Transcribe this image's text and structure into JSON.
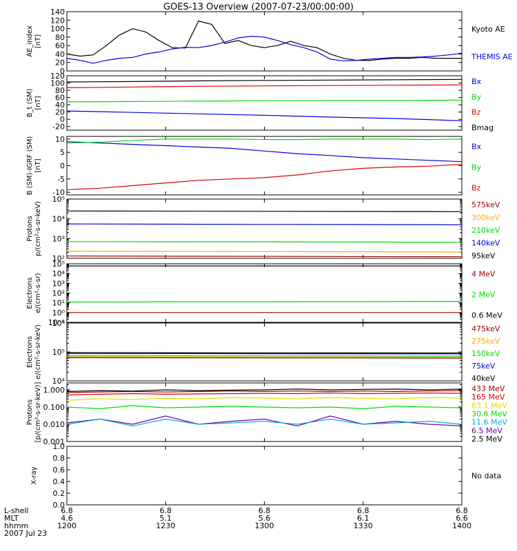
{
  "title": "GOES-13 Overview (2007-07-23/00:00:00)",
  "colors": {
    "black": "#000000",
    "blue": "#0000e0",
    "green": "#00dd00",
    "red": "#dd0000",
    "darkred": "#990000",
    "orange": "#ffaa00",
    "cyan": "#00aadd",
    "purple": "#6a00a8",
    "olive": "#dddd00"
  },
  "x_axis": {
    "row_labels": [
      "L-shell",
      "MLT",
      "hhmm",
      "2007 Jul 23"
    ],
    "ticks": [
      {
        "t": 1200,
        "lshell": "6.8",
        "mlt": "4.6",
        "hhmm": "1200"
      },
      {
        "t": 1230,
        "lshell": "6.8",
        "mlt": "5.1",
        "hhmm": "1230"
      },
      {
        "t": 1300,
        "lshell": "6.8",
        "mlt": "5.6",
        "hhmm": "1300"
      },
      {
        "t": 1330,
        "lshell": "6.8",
        "mlt": "6.1",
        "hhmm": "1330"
      },
      {
        "t": 1400,
        "lshell": "6.8",
        "mlt": "6.6",
        "hhmm": "1400"
      }
    ]
  },
  "chart_data": [
    {
      "type": "line",
      "ylabel": "AE_index\n[nT]",
      "ylim": [
        0,
        140
      ],
      "yticks": [
        "0",
        "20",
        "40",
        "60",
        "80",
        "100",
        "120",
        "140"
      ],
      "yvals": [
        0,
        20,
        40,
        60,
        80,
        100,
        120,
        140
      ],
      "legend": [
        {
          "label": "Kyoto AE",
          "color": "black"
        },
        {
          "label": "THEMIS AE",
          "color": "blue"
        }
      ],
      "series": [
        {
          "name": "Kyoto AE",
          "color": "black",
          "x": [
            0,
            4,
            8,
            12,
            16,
            20,
            24,
            28,
            32,
            36,
            40,
            44,
            48,
            52,
            56,
            60,
            64,
            68,
            72,
            76,
            80,
            84,
            88,
            92,
            96,
            100,
            104,
            108,
            112,
            116,
            120
          ],
          "y": [
            40,
            35,
            38,
            60,
            85,
            100,
            92,
            72,
            55,
            54,
            118,
            110,
            65,
            72,
            60,
            55,
            60,
            70,
            60,
            55,
            40,
            30,
            25,
            25,
            28,
            30,
            30,
            32,
            30,
            30,
            30
          ]
        },
        {
          "name": "THEMIS AE",
          "color": "blue",
          "x": [
            0,
            4,
            8,
            12,
            16,
            20,
            24,
            28,
            32,
            36,
            40,
            44,
            48,
            52,
            56,
            60,
            64,
            68,
            72,
            76,
            80,
            84,
            88,
            92,
            96,
            100,
            104,
            108,
            112,
            116,
            120
          ],
          "y": [
            30,
            25,
            18,
            25,
            30,
            32,
            40,
            45,
            52,
            56,
            55,
            60,
            68,
            78,
            82,
            80,
            72,
            62,
            55,
            45,
            28,
            24,
            25,
            28,
            30,
            32,
            32,
            33,
            35,
            38,
            42
          ]
        }
      ]
    },
    {
      "type": "line",
      "ylabel": "B_t (SM)\n[nT]",
      "ylim": [
        -30,
        120
      ],
      "yticks": [
        "-20",
        "0",
        "20",
        "40",
        "60",
        "80",
        "100",
        "120"
      ],
      "yvals": [
        -20,
        0,
        20,
        40,
        60,
        80,
        100,
        120
      ],
      "legend": [
        {
          "label": "Bx",
          "color": "blue"
        },
        {
          "label": "By",
          "color": "green"
        },
        {
          "label": "Bz",
          "color": "red"
        },
        {
          "label": "Bmag",
          "color": "black"
        }
      ],
      "series": [
        {
          "name": "Bx",
          "color": "blue",
          "x": [
            0,
            20,
            40,
            60,
            80,
            100,
            120
          ],
          "y": [
            23,
            19,
            15,
            11,
            6,
            2,
            -4
          ]
        },
        {
          "name": "By",
          "color": "green",
          "x": [
            0,
            20,
            40,
            60,
            80,
            100,
            120
          ],
          "y": [
            48,
            49,
            50,
            51,
            52,
            52,
            53
          ]
        },
        {
          "name": "Bz",
          "color": "red",
          "x": [
            0,
            20,
            40,
            60,
            80,
            100,
            120
          ],
          "y": [
            87,
            89,
            91,
            92,
            93,
            94,
            95
          ]
        },
        {
          "name": "Bmag",
          "color": "black",
          "x": [
            0,
            20,
            40,
            60,
            80,
            100,
            120
          ],
          "y": [
            103,
            104,
            106,
            107,
            108,
            109,
            110
          ]
        }
      ]
    },
    {
      "type": "line",
      "ylabel": "B (SM)-IGRF (SM)\n[nT]",
      "ylim": [
        -11,
        11
      ],
      "yticks": [
        "-10",
        "-5",
        "0",
        "5",
        "10"
      ],
      "yvals": [
        -10,
        -5,
        0,
        5,
        10
      ],
      "legend": [
        {
          "label": "Bx",
          "color": "blue"
        },
        {
          "label": "By",
          "color": "green"
        },
        {
          "label": "Bz",
          "color": "red"
        }
      ],
      "series": [
        {
          "name": "Bx",
          "color": "blue",
          "x": [
            0,
            10,
            20,
            30,
            40,
            50,
            60,
            70,
            80,
            90,
            100,
            110,
            120
          ],
          "y": [
            9,
            8.5,
            8,
            7.5,
            7,
            6.5,
            5.5,
            4.5,
            3.8,
            3,
            2.5,
            2,
            1.5
          ]
        },
        {
          "name": "By",
          "color": "green",
          "x": [
            0,
            10,
            20,
            30,
            40,
            50,
            60,
            70,
            80,
            90,
            100,
            110,
            120
          ],
          "y": [
            8.5,
            8.8,
            9.5,
            10,
            10,
            10,
            9.8,
            9.8,
            10,
            10,
            10,
            9.8,
            10
          ]
        },
        {
          "name": "Bz",
          "color": "red",
          "x": [
            0,
            10,
            20,
            30,
            40,
            50,
            60,
            70,
            80,
            90,
            100,
            110,
            120
          ],
          "y": [
            -9,
            -8.5,
            -7.5,
            -6.5,
            -5.5,
            -5,
            -4.5,
            -3.5,
            -2,
            -1,
            -0.5,
            -0.2,
            0.5
          ]
        }
      ]
    },
    {
      "type": "line",
      "log": true,
      "ylabel": "Protons\np/(cm²-s-sr-keV)",
      "ylim": [
        100,
        100000
      ],
      "yticks": [
        "10²",
        "10³",
        "10⁴",
        "10⁵"
      ],
      "yvals": [
        100,
        1000,
        10000,
        100000
      ],
      "legend": [
        {
          "label": "575keV",
          "color": "darkred"
        },
        {
          "label": "300keV",
          "color": "orange"
        },
        {
          "label": "210keV",
          "color": "green"
        },
        {
          "label": "140keV",
          "color": "blue"
        },
        {
          "label": "95keV",
          "color": "black"
        }
      ],
      "series": [
        {
          "name": "95keV",
          "color": "black",
          "x": [
            0,
            60,
            120
          ],
          "y": [
            25000,
            24000,
            23000
          ]
        },
        {
          "name": "140keV",
          "color": "blue",
          "x": [
            0,
            60,
            120
          ],
          "y": [
            5500,
            5200,
            5000
          ]
        },
        {
          "name": "210keV",
          "color": "green",
          "x": [
            0,
            60,
            120
          ],
          "y": [
            700,
            680,
            650
          ]
        },
        {
          "name": "300keV",
          "color": "orange",
          "x": [
            0,
            60,
            120
          ],
          "y": [
            230,
            220,
            210
          ]
        },
        {
          "name": "575keV",
          "color": "darkred",
          "x": [
            0,
            60,
            120
          ],
          "y": [
            130,
            125,
            120
          ]
        }
      ]
    },
    {
      "type": "line",
      "log": true,
      "ylabel": "Electrons\ne/(cm²-s-sr)",
      "ylim": [
        0.1,
        100000
      ],
      "yticks": [
        "10⁻¹",
        "10⁰",
        "10¹",
        "10²",
        "10³",
        "10⁴",
        "10⁵"
      ],
      "yvals": [
        0.1,
        1,
        10,
        100,
        1000,
        10000,
        100000
      ],
      "legend": [
        {
          "label": "4 MeV",
          "color": "darkred"
        },
        {
          "label": "2 MeV",
          "color": "green"
        },
        {
          "label": "0.6 MeV",
          "color": "black"
        }
      ],
      "series": [
        {
          "name": "0.6 MeV",
          "color": "black",
          "x": [
            0,
            60,
            120
          ],
          "y": [
            60000,
            60000,
            60000
          ]
        },
        {
          "name": "2 MeV",
          "color": "green",
          "x": [
            0,
            60,
            120
          ],
          "y": [
            12,
            13,
            14
          ]
        },
        {
          "name": "4 MeV",
          "color": "darkred",
          "x": [
            0,
            60,
            120
          ],
          "y": [
            1,
            1,
            1
          ]
        }
      ]
    },
    {
      "type": "line",
      "log": true,
      "ylabel": "Electrons\ne/(cm²-s-sr-keV)",
      "ylim": [
        10000,
        1000000
      ],
      "yticks": [
        "10⁴",
        "10⁵",
        "10⁶"
      ],
      "yvals": [
        10000,
        100000,
        1000000
      ],
      "legend": [
        {
          "label": "475keV",
          "color": "darkred"
        },
        {
          "label": "275keV",
          "color": "orange"
        },
        {
          "label": "150keV",
          "color": "green"
        },
        {
          "label": "75keV",
          "color": "blue"
        },
        {
          "label": "40keV",
          "color": "black"
        }
      ],
      "series": [
        {
          "name": "40keV",
          "color": "black",
          "x": [
            0,
            60,
            120
          ],
          "y": [
            95000,
            93000,
            92000
          ]
        },
        {
          "name": "75keV",
          "color": "blue",
          "x": [
            0,
            60,
            120
          ],
          "y": [
            88000,
            87000,
            86000
          ]
        },
        {
          "name": "150keV",
          "color": "green",
          "x": [
            0,
            60,
            120
          ],
          "y": [
            74000,
            73000,
            72000
          ]
        },
        {
          "name": "275keV",
          "color": "orange",
          "x": [
            0,
            60,
            120
          ],
          "y": [
            68000,
            67000,
            66000
          ]
        },
        {
          "name": "475keV",
          "color": "darkred",
          "x": [
            0,
            60,
            120
          ],
          "y": [
            63000,
            62000,
            61000
          ]
        }
      ]
    },
    {
      "type": "line",
      "log": true,
      "ylabel": "Protons\n[p/(cm²-s-sr-keV)]",
      "ylim": [
        0.001,
        2.5
      ],
      "yticks": [
        "0.001",
        "0.010",
        "0.100",
        "1.000"
      ],
      "yvals": [
        0.001,
        0.01,
        0.1,
        1
      ],
      "legend": [
        {
          "label": "433 MeV",
          "color": "darkred"
        },
        {
          "label": "165 MeV",
          "color": "red"
        },
        {
          "label": "63.1 MeV",
          "color": "olive"
        },
        {
          "label": "30.6 MeV",
          "color": "green"
        },
        {
          "label": "11.6 MeV",
          "color": "cyan"
        },
        {
          "label": "6.5 MeV",
          "color": "purple"
        },
        {
          "label": "2.5 MeV",
          "color": "black"
        }
      ],
      "series": [
        {
          "name": "2.5 MeV",
          "color": "black",
          "x": [
            0,
            10,
            20,
            30,
            40,
            50,
            60,
            70,
            80,
            90,
            100,
            110,
            120
          ],
          "y": [
            0.8,
            0.9,
            0.85,
            1.0,
            0.9,
            0.95,
            1.0,
            1.1,
            1.0,
            1.05,
            1.1,
            1.0,
            1.1
          ]
        },
        {
          "name": "6.5 MeV",
          "color": "purple",
          "x": [
            0,
            10,
            20,
            30,
            40,
            50,
            60,
            70,
            80,
            90,
            100,
            110,
            120
          ],
          "y": [
            0.012,
            0.02,
            0.01,
            0.03,
            0.01,
            0.015,
            0.02,
            0.008,
            0.03,
            0.01,
            0.015,
            0.01,
            0.008
          ]
        },
        {
          "name": "11.6 MeV",
          "color": "cyan",
          "x": [
            0,
            10,
            20,
            30,
            40,
            50,
            60,
            70,
            80,
            90,
            100,
            110,
            120
          ],
          "y": [
            0.01,
            0.02,
            0.008,
            0.02,
            0.01,
            0.012,
            0.015,
            0.01,
            0.02,
            0.01,
            0.012,
            0.015,
            0.01
          ]
        },
        {
          "name": "30.6 MeV",
          "color": "green",
          "x": [
            0,
            10,
            20,
            30,
            40,
            50,
            60,
            70,
            80,
            90,
            100,
            110,
            120
          ],
          "y": [
            0.1,
            0.08,
            0.12,
            0.09,
            0.1,
            0.11,
            0.1,
            0.09,
            0.1,
            0.08,
            0.11,
            0.1,
            0.09
          ]
        },
        {
          "name": "63.1 MeV",
          "color": "olive",
          "x": [
            0,
            10,
            20,
            30,
            40,
            50,
            60,
            70,
            80,
            90,
            100,
            110,
            120
          ],
          "y": [
            0.25,
            0.3,
            0.28,
            0.32,
            0.3,
            0.35,
            0.33,
            0.3,
            0.35,
            0.32,
            0.3,
            0.35,
            0.33
          ]
        },
        {
          "name": "165 MeV",
          "color": "red",
          "x": [
            0,
            10,
            20,
            30,
            40,
            50,
            60,
            70,
            80,
            90,
            100,
            110,
            120
          ],
          "y": [
            0.5,
            0.55,
            0.6,
            0.55,
            0.58,
            0.6,
            0.62,
            0.6,
            0.65,
            0.6,
            0.63,
            0.65,
            0.62
          ]
        },
        {
          "name": "433 MeV",
          "color": "darkred",
          "x": [
            0,
            10,
            20,
            30,
            40,
            50,
            60,
            70,
            80,
            90,
            100,
            110,
            120
          ],
          "y": [
            0.7,
            0.75,
            0.8,
            0.75,
            0.8,
            0.85,
            0.8,
            0.85,
            0.8,
            0.85,
            0.8,
            0.85,
            0.9
          ]
        }
      ]
    },
    {
      "type": "line",
      "ylabel": "X-ray",
      "ylim": [
        0,
        1
      ],
      "yticks": [
        "0.0",
        "0.2",
        "0.4",
        "0.6",
        "0.8",
        "1.0"
      ],
      "yvals": [
        0,
        0.2,
        0.4,
        0.6,
        0.8,
        1.0
      ],
      "legend": [
        {
          "label": "No data",
          "color": "black"
        }
      ],
      "series": []
    }
  ]
}
